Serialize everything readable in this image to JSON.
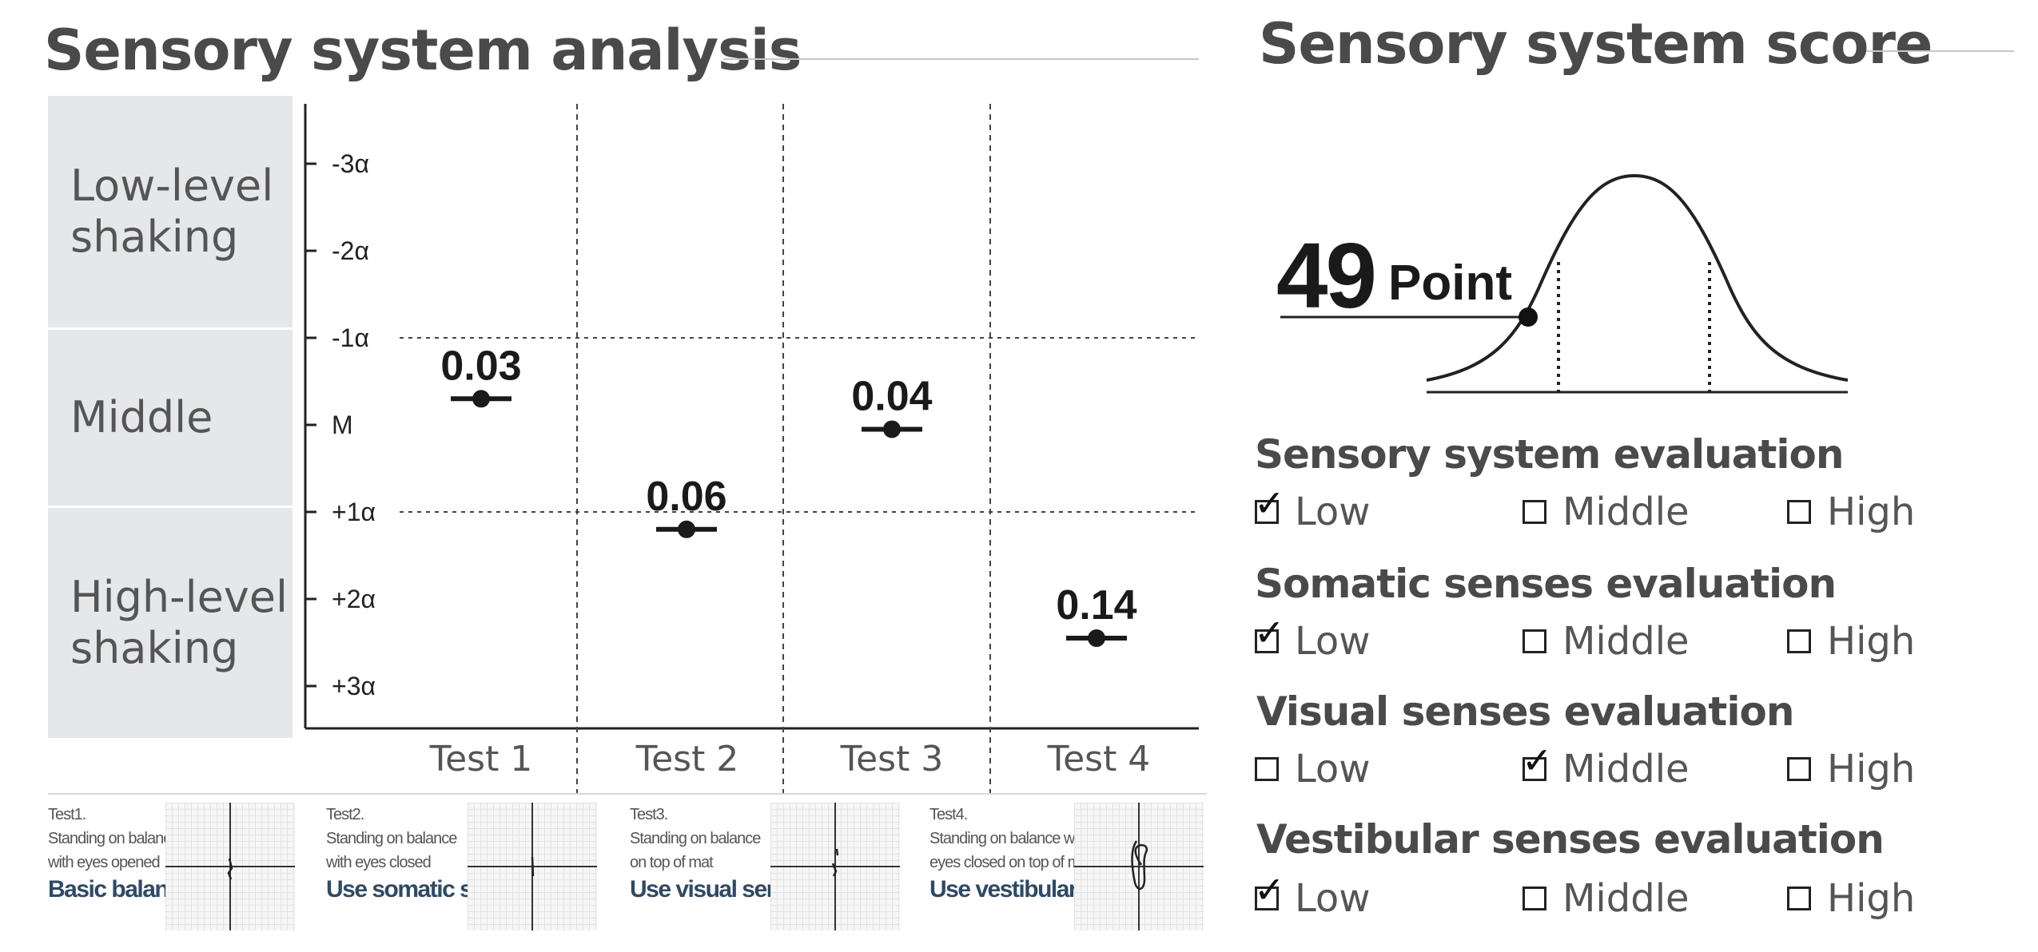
{
  "left": {
    "title": "Sensory system analysis",
    "bands": [
      "Low-level\nshaking",
      "Middle",
      "High-level\nshaking"
    ]
  },
  "chart_data": {
    "type": "scatter",
    "title": "",
    "xlabel": "",
    "ylabel": "",
    "categories": [
      "Test 1",
      "Test 2",
      "Test 3",
      "Test 4"
    ],
    "y_ticks": [
      "-3α",
      "-2α",
      "-1α",
      "M",
      "+1α",
      "+2α",
      "+3α"
    ],
    "ylim": [
      -3,
      3
    ],
    "reference_lines": [
      -1,
      1
    ],
    "grid": false,
    "points": [
      {
        "category": "Test 1",
        "position": -0.3,
        "label": "0.03"
      },
      {
        "category": "Test 2",
        "position": 1.2,
        "label": "0.06"
      },
      {
        "category": "Test 3",
        "position": 0.05,
        "label": "0.04"
      },
      {
        "category": "Test 4",
        "position": 2.45,
        "label": "0.14"
      }
    ]
  },
  "tests": [
    {
      "name": "Test1.",
      "desc1": "Standing on balance",
      "desc2": "with eyes opened",
      "caption": "Basic balance"
    },
    {
      "name": "Test2.",
      "desc1": "Standing on balance",
      "desc2": "with eyes closed",
      "caption": "Use somatic senses"
    },
    {
      "name": "Test3.",
      "desc1": "Standing on balance",
      "desc2": "on top of mat",
      "caption": "Use visual senses"
    },
    {
      "name": "Test4.",
      "desc1": "Standing on balance with",
      "desc2": "eyes closed on top of mat",
      "caption": "Use vestibular senses"
    }
  ],
  "right": {
    "title": "Sensory system score",
    "score": "49",
    "score_unit": "Point",
    "evaluations": [
      {
        "title": "Sensory system evaluation",
        "options": [
          "Low",
          "Middle",
          "High"
        ],
        "selected": "Low"
      },
      {
        "title": "Somatic senses evaluation",
        "options": [
          "Low",
          "Middle",
          "High"
        ],
        "selected": "Low"
      },
      {
        "title": "Visual senses evaluation",
        "options": [
          "Low",
          "Middle",
          "High"
        ],
        "selected": "Middle"
      },
      {
        "title": "Vestibular senses evaluation",
        "options": [
          "Low",
          "Middle",
          "High"
        ],
        "selected": "Low"
      }
    ]
  }
}
